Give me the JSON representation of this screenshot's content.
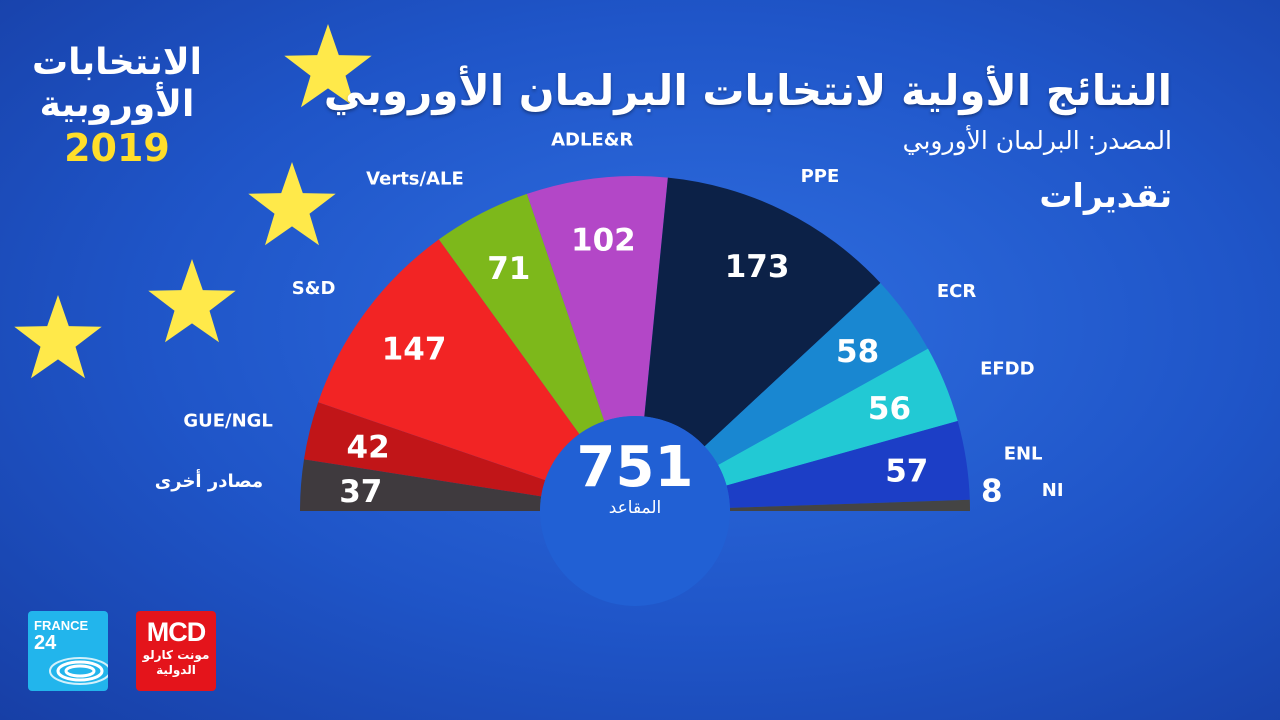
{
  "title": "النتائج الأولية لانتخابات البرلمان الأوروبي",
  "source": "المصدر: البرلمان الأوروبي",
  "estimates_label": "تقديرات",
  "corner": {
    "line1": "الانتخابات",
    "line2": "الأوروبية",
    "year": "2019"
  },
  "logos": {
    "france24_line1": "FRANCE",
    "france24_line2": "24",
    "mcd_line1": "MCD",
    "mcd_line2": "مونت كارلو",
    "mcd_line3": "الدولية"
  },
  "colors": {
    "background": "#1f55c8",
    "star": "#ffe94a",
    "logo_france24": "#22b5ec",
    "logo_mcd": "#e4141b"
  },
  "chart_data": {
    "type": "pie",
    "subtype": "semicircle-parliament",
    "total": 751,
    "total_label": "المقاعد",
    "slices": [
      {
        "name": "مصادر أخرى",
        "value": 37,
        "color": "#3f3a3e"
      },
      {
        "name": "GUE/NGL",
        "value": 42,
        "color": "#c11518"
      },
      {
        "name": "S&D",
        "value": 147,
        "color": "#f22424"
      },
      {
        "name": "Verts/ALE",
        "value": 71,
        "color": "#7db81b"
      },
      {
        "name": "ADLE&R",
        "value": 102,
        "color": "#b347c7"
      },
      {
        "name": "PPE",
        "value": 173,
        "color": "#0c2147"
      },
      {
        "name": "ECR",
        "value": 58,
        "color": "#1987d1"
      },
      {
        "name": "EFDD",
        "value": 56,
        "color": "#22c9d4"
      },
      {
        "name": "ENL",
        "value": 57,
        "color": "#1c3ec6"
      },
      {
        "name": "NI",
        "value": 8,
        "color": "#444444"
      }
    ]
  }
}
